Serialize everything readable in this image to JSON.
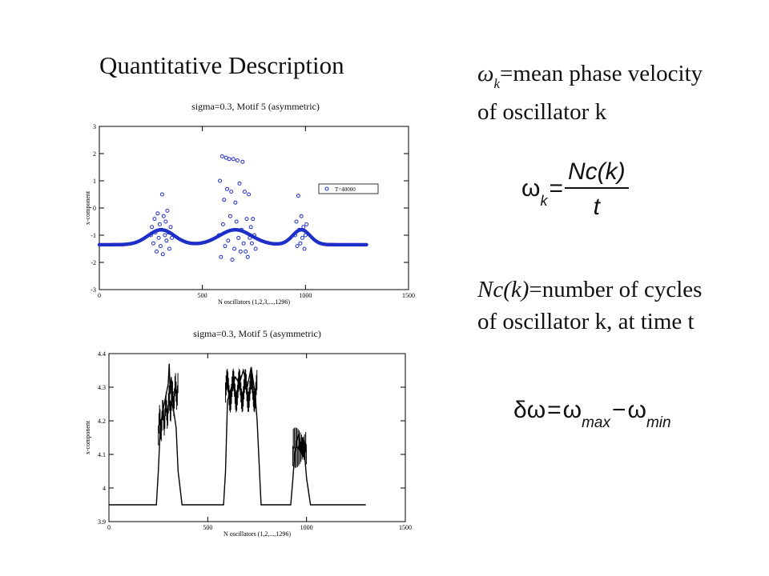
{
  "slide": {
    "title": "Quantitative Description"
  },
  "right_text": {
    "omega_symbol": "ω",
    "k_sub": "k",
    "def_line1": "=mean phase velocity",
    "def_line2": "of oscillator k",
    "formula1": {
      "lhs": "ω",
      "lhs_sub": "k",
      "eq": "=",
      "numerator": "Nc(k)",
      "denominator": "t"
    },
    "nc_italic": "Nc(k)",
    "nc_line1": "=number of cycles",
    "nc_line2": "of oscillator k, at time t",
    "formula2": {
      "delta": "δω",
      "eq": "=",
      "omega": "ω",
      "sub_max": "max",
      "minus": "−",
      "sub_min": "min"
    }
  },
  "chart_data": [
    {
      "type": "scatter",
      "title": "sigma=0.3, Motif 5 (asymmetric)",
      "xlabel": "N oscillators (1,2,3,...,1296)",
      "ylabel": "x-component",
      "xlim": [
        0,
        1500
      ],
      "ylim": [
        -3,
        3
      ],
      "xticks": [
        "0",
        "500",
        "1000",
        "1500"
      ],
      "yticks": [
        "-3",
        "-2",
        "-1",
        "0",
        "1",
        "2",
        "3"
      ],
      "legend": {
        "label": "T=40000",
        "placement": "top-right"
      },
      "series_color": "#1f2fc8",
      "points": [
        [
          250,
          -1.0
        ],
        [
          255,
          -0.7
        ],
        [
          262,
          -1.3
        ],
        [
          268,
          -0.4
        ],
        [
          272,
          -0.9
        ],
        [
          278,
          -1.6
        ],
        [
          283,
          -0.2
        ],
        [
          288,
          -1.1
        ],
        [
          293,
          -0.6
        ],
        [
          297,
          -1.4
        ],
        [
          302,
          -0.8
        ],
        [
          305,
          0.5
        ],
        [
          308,
          -1.7
        ],
        [
          312,
          -0.3
        ],
        [
          318,
          -1.0
        ],
        [
          322,
          -0.5
        ],
        [
          326,
          -1.2
        ],
        [
          330,
          -0.1
        ],
        [
          335,
          -0.9
        ],
        [
          340,
          -1.5
        ],
        [
          346,
          -0.7
        ],
        [
          352,
          -1.1
        ],
        [
          580,
          -1.0
        ],
        [
          585,
          1.0
        ],
        [
          590,
          -1.8
        ],
        [
          596,
          1.9
        ],
        [
          600,
          -0.6
        ],
        [
          605,
          0.3
        ],
        [
          610,
          -1.4
        ],
        [
          615,
          1.85
        ],
        [
          620,
          0.7
        ],
        [
          625,
          -1.2
        ],
        [
          630,
          1.8
        ],
        [
          635,
          -0.3
        ],
        [
          640,
          0.6
        ],
        [
          645,
          -1.9
        ],
        [
          650,
          1.8
        ],
        [
          655,
          -1.5
        ],
        [
          660,
          0.2
        ],
        [
          665,
          -0.5
        ],
        [
          670,
          1.75
        ],
        [
          675,
          -1.1
        ],
        [
          680,
          0.9
        ],
        [
          685,
          -1.6
        ],
        [
          690,
          -0.8
        ],
        [
          695,
          1.7
        ],
        [
          700,
          -1.3
        ],
        [
          705,
          0.6
        ],
        [
          710,
          -1.6
        ],
        [
          715,
          -0.4
        ],
        [
          720,
          -1.8
        ],
        [
          725,
          0.5
        ],
        [
          730,
          -1.1
        ],
        [
          735,
          -0.7
        ],
        [
          740,
          -1.3
        ],
        [
          745,
          -0.4
        ],
        [
          752,
          -1.0
        ],
        [
          758,
          -1.5
        ],
        [
          950,
          -1.0
        ],
        [
          956,
          -0.5
        ],
        [
          960,
          -1.4
        ],
        [
          965,
          0.45
        ],
        [
          970,
          -0.8
        ],
        [
          975,
          -1.3
        ],
        [
          980,
          -0.3
        ],
        [
          985,
          -1.1
        ],
        [
          990,
          -0.7
        ],
        [
          995,
          -1.5
        ],
        [
          1000,
          -1.0
        ],
        [
          1005,
          -0.6
        ]
      ],
      "baseline_note": ""
    },
    {
      "type": "line",
      "title": "sigma=0.3, Motif 5 (asymmetric)",
      "xlabel": "N oscillators (1,2,...,1296)",
      "ylabel": "x-component",
      "xlim": [
        0,
        1500
      ],
      "ylim": [
        3.9,
        4.4
      ],
      "xticks": [
        "0",
        "500",
        "1000",
        "1500"
      ],
      "yticks": [
        "3.9",
        "4",
        "4.1",
        "4.2",
        "4.3",
        "4.4"
      ],
      "series_color": "#000000",
      "x": [
        0,
        240,
        250,
        260,
        270,
        280,
        290,
        300,
        305,
        310,
        315,
        320,
        330,
        340,
        350,
        370,
        380,
        500,
        580,
        590,
        600,
        620,
        640,
        660,
        680,
        700,
        720,
        730,
        740,
        750,
        770,
        780,
        920,
        930,
        940,
        950,
        960,
        970,
        980,
        990,
        1000,
        1020,
        1030,
        1300
      ],
      "y": [
        3.95,
        3.95,
        4.05,
        4.18,
        4.22,
        4.25,
        4.28,
        4.31,
        4.37,
        4.28,
        4.33,
        4.25,
        4.22,
        4.18,
        4.05,
        3.95,
        3.95,
        3.95,
        3.95,
        4.05,
        4.26,
        4.3,
        4.33,
        4.31,
        4.35,
        4.3,
        4.36,
        4.32,
        4.28,
        4.2,
        3.95,
        3.95,
        3.95,
        4.02,
        4.1,
        4.14,
        4.16,
        4.12,
        4.15,
        4.1,
        4.03,
        3.95,
        3.95,
        3.95
      ]
    }
  ]
}
